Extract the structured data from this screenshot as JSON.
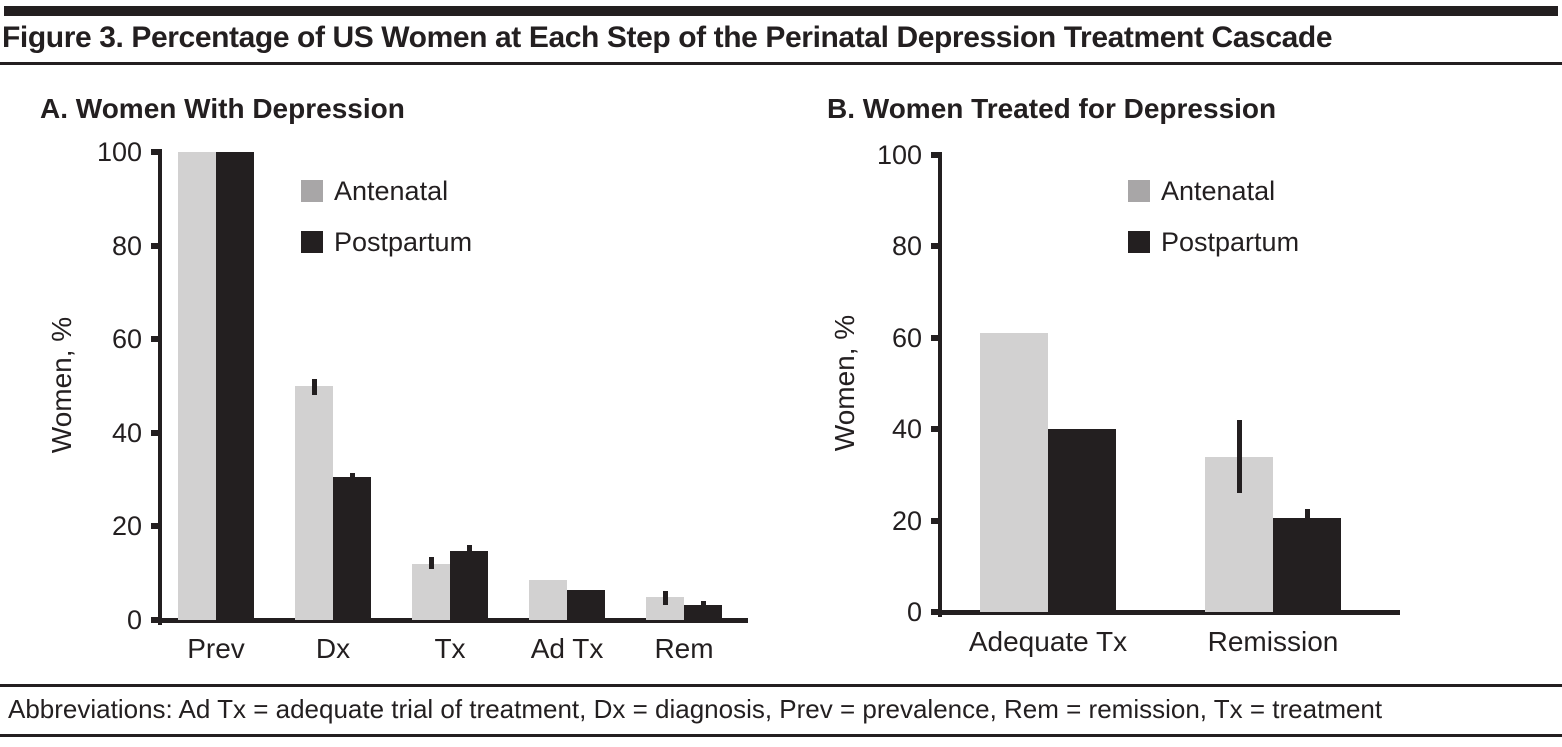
{
  "figure": {
    "title": "Figure 3. Percentage of US Women at Each Step of the Perinatal Depression Treatment Cascade",
    "abbreviations": "Abbreviations: Ad Tx = adequate trial of treatment, Dx = diagnosis, Prev = prevalence, Rem = remission, Tx = treatment"
  },
  "colors": {
    "ink": "#231f20",
    "background": "#ffffff",
    "antenatal_bar": "#d2d1d1",
    "antenatal_legend_swatch": "#a8a6a7",
    "postpartum": "#231f20"
  },
  "chart_data": [
    {
      "type": "bar",
      "panel_label": "A. Women With Depression",
      "ylabel": "Women, %",
      "ylim": [
        0,
        100
      ],
      "yticks": [
        0,
        20,
        40,
        60,
        80,
        100
      ],
      "grid": false,
      "categories": [
        "Prev",
        "Dx",
        "Tx",
        "Ad Tx",
        "Rem"
      ],
      "series": [
        {
          "name": "Antenatal",
          "values": [
            100,
            50,
            12,
            8.5,
            5
          ],
          "error_ranges": [
            null,
            [
              48,
              51.5
            ],
            [
              11,
              13.5
            ],
            null,
            [
              3.3,
              6.2
            ]
          ]
        },
        {
          "name": "Postpartum",
          "values": [
            100,
            30.5,
            14.7,
            6.5,
            3.3
          ],
          "error_ranges": [
            null,
            [
              30,
              31.5
            ],
            [
              13.5,
              16
            ],
            null,
            [
              2.8,
              4
            ]
          ]
        }
      ],
      "legend": {
        "position": "upper right inside plot",
        "items": [
          "Antenatal",
          "Postpartum"
        ]
      }
    },
    {
      "type": "bar",
      "panel_label": "B. Women Treated for Depression",
      "ylabel": "Women, %",
      "ylim": [
        0,
        100
      ],
      "yticks": [
        0,
        20,
        40,
        60,
        80,
        100
      ],
      "grid": false,
      "categories": [
        "Adequate Tx",
        "Remission"
      ],
      "series": [
        {
          "name": "Antenatal",
          "values": [
            61,
            34
          ],
          "error_ranges": [
            null,
            [
              26,
              42
            ]
          ]
        },
        {
          "name": "Postpartum",
          "values": [
            40,
            20.5
          ],
          "error_ranges": [
            null,
            [
              19.5,
              22.5
            ]
          ]
        }
      ],
      "legend": {
        "position": "upper right inside plot",
        "items": [
          "Antenatal",
          "Postpartum"
        ]
      }
    }
  ]
}
